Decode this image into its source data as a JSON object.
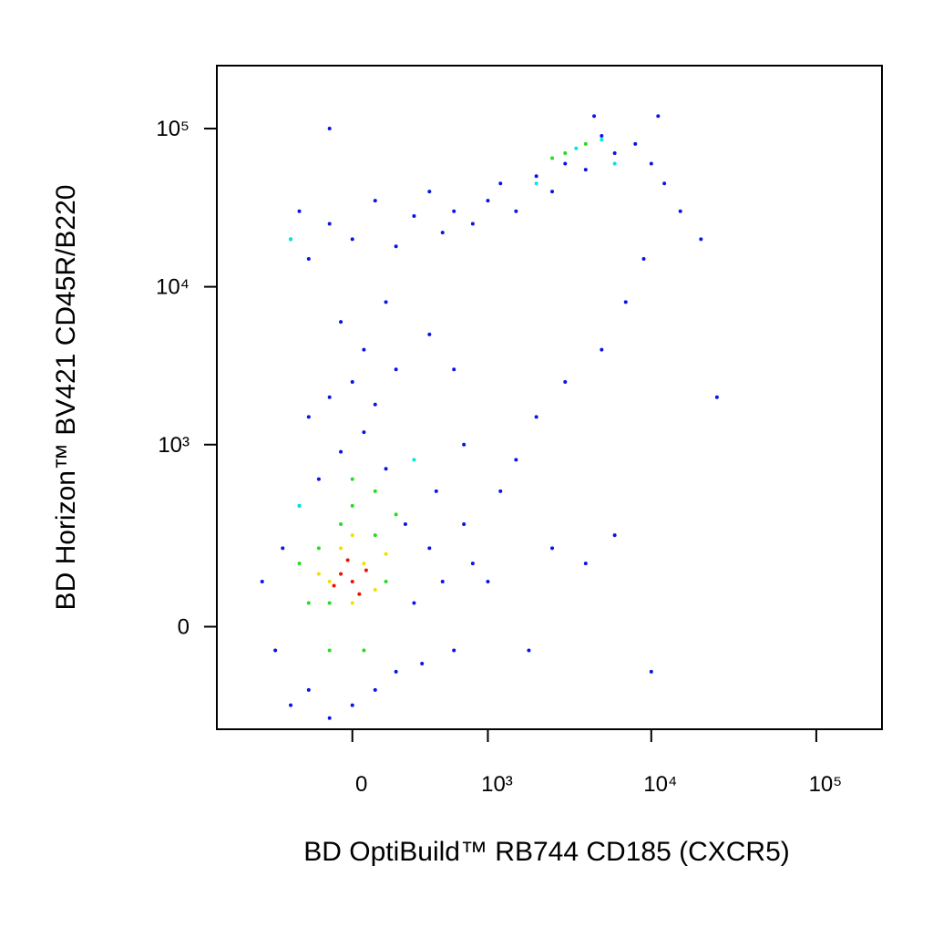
{
  "chart_data": {
    "type": "scatter",
    "x_label": "BD OptiBuild™ RB744 CD185 (CXCR5)",
    "y_label": "BD Horizon™ BV421 CD45R/B220",
    "xscale": "biexponential",
    "yscale": "biexponential",
    "xlim": [
      -1000,
      250000
    ],
    "ylim": [
      -300,
      250000
    ],
    "xticks": [
      0,
      {
        "value": 1000,
        "label": "10³"
      },
      {
        "value": 10000,
        "label": "10⁴"
      },
      {
        "value": 100000,
        "label": "10⁵"
      }
    ],
    "yticks": [
      0,
      {
        "value": 1000,
        "label": "10³"
      },
      {
        "value": 10000,
        "label": "10⁴"
      },
      {
        "value": 100000,
        "label": "10⁵"
      }
    ],
    "series": [
      {
        "color": "#0a14e6",
        "x": [
          -500,
          -400,
          -350,
          -300,
          -250,
          -200,
          -150,
          -100,
          -50,
          0,
          50,
          100,
          150,
          200,
          250,
          300,
          350,
          400,
          450,
          500,
          600,
          700,
          800,
          -200,
          -100,
          0,
          100,
          200,
          50,
          -50,
          150,
          -300,
          -250,
          -200,
          -100,
          0,
          100,
          200,
          300,
          400,
          500,
          600,
          800,
          1000,
          1200,
          1500,
          2000,
          2500,
          3000,
          4000,
          5000,
          6000,
          8000,
          10000,
          12000,
          15000,
          20000,
          9000,
          7000,
          5000,
          3000,
          2000,
          1500,
          1200,
          2500,
          4000,
          6000,
          10000,
          1000,
          1800,
          700,
          400,
          600,
          25000,
          11000,
          -100,
          4500
        ],
        "y": [
          100,
          -50,
          200,
          -200,
          400,
          -150,
          600,
          -250,
          900,
          -200,
          1200,
          -150,
          700,
          -100,
          300,
          50,
          -80,
          200,
          500,
          100,
          -50,
          300,
          150,
          1500,
          2000,
          2500,
          1800,
          3000,
          4000,
          6000,
          8000,
          20000,
          30000,
          15000,
          25000,
          20000,
          35000,
          18000,
          28000,
          40000,
          22000,
          30000,
          25000,
          35000,
          45000,
          30000,
          50000,
          40000,
          60000,
          55000,
          90000,
          70000,
          80000,
          60000,
          45000,
          30000,
          20000,
          15000,
          8000,
          4000,
          2500,
          1500,
          800,
          500,
          200,
          150,
          250,
          -100,
          100,
          -50,
          1000,
          5000,
          3000,
          2000,
          120000,
          100000,
          120000
        ]
      },
      {
        "color": "#22dd22",
        "x": [
          -150,
          -100,
          -50,
          0,
          50,
          100,
          150,
          200,
          -200,
          -250,
          0,
          100,
          -100,
          3000,
          4000,
          2500
        ],
        "y": [
          200,
          50,
          300,
          400,
          -50,
          250,
          100,
          350,
          50,
          150,
          600,
          500,
          -50,
          70000,
          80000,
          65000
        ]
      },
      {
        "color": "#00e6e6",
        "x": [
          3500,
          5000,
          -300,
          300,
          -250,
          6000,
          2000
        ],
        "y": [
          75000,
          85000,
          20000,
          800,
          400,
          60000,
          45000
        ]
      },
      {
        "color": "#f0e000",
        "x": [
          -100,
          -50,
          0,
          50,
          100,
          -150,
          0,
          150
        ],
        "y": [
          100,
          200,
          50,
          150,
          80,
          120,
          250,
          180
        ]
      },
      {
        "color": "#ee1100",
        "x": [
          -50,
          0,
          -20,
          30,
          60,
          -80
        ],
        "y": [
          120,
          100,
          160,
          70,
          130,
          90
        ]
      }
    ]
  }
}
